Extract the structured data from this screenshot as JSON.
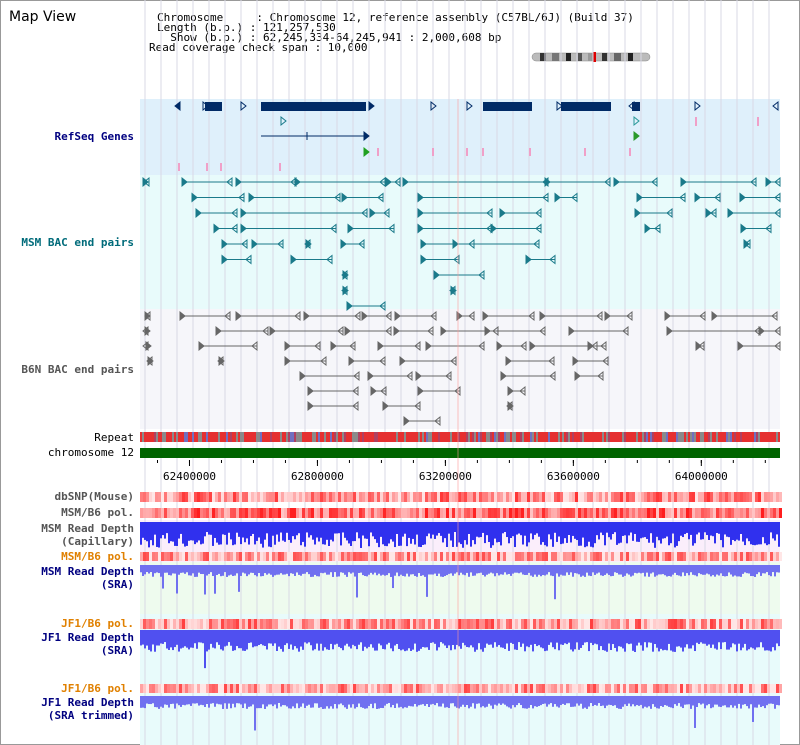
{
  "view": {
    "title": "Map View",
    "header_lines": [
      "Chromosome     : Chromosome 12, reference assembly (C57BL/6J) (Build 37)",
      "Length (b.p.) : 121,257,530",
      "  Show (b.p.) : 62,245,334-64,245,941 : 2,000,608 bp",
      "Read coverage check span : 10,000"
    ]
  },
  "tracks": {
    "refseq": "RefSeq Genes",
    "msm_bac": "MSM BAC end pairs",
    "b6n_bac": "B6N BAC end pairs",
    "repeat": "Repeat",
    "chromosome": "chromosome 12",
    "dbsnp": "dbSNP(Mouse)",
    "msm_b6_pol_1": "MSM/B6 pol.",
    "msm_depth_cap_1": "MSM Read Depth",
    "msm_depth_cap_2": "(Capillary)",
    "msm_b6_pol_2": "MSM/B6 pol.",
    "msm_depth_sra_1": "MSM Read Depth",
    "msm_depth_sra_2": "(SRA)",
    "jf1_b6_pol_1": "JF1/B6 pol.",
    "jf1_depth_1": "JF1 Read Depth",
    "jf1_depth_2": "(SRA)",
    "jf1_b6_pol_2": "JF1/B6 pol.",
    "jf1_trim_1": "JF1 Read Depth",
    "jf1_trim_2": "(SRA trimmed)"
  },
  "axis": {
    "start_bp": 62245334,
    "end_bp": 64245941,
    "ticks": [
      62400000,
      62800000,
      63200000,
      63600000,
      64000000
    ],
    "tick_labels": [
      "62400000",
      "62800000",
      "63200000",
      "63600000",
      "64000000"
    ]
  },
  "colors": {
    "label_navy": "#000080",
    "label_teal": "#006b7a",
    "label_gray": "#555555",
    "label_orange": "#e08000",
    "gene": "#002a66",
    "msm_bac": "#1a7a8a",
    "b6n_bac": "#666666",
    "chromosome": "#006400",
    "depth_blue": "#3030ee",
    "depth_light": "#7070f0"
  }
}
